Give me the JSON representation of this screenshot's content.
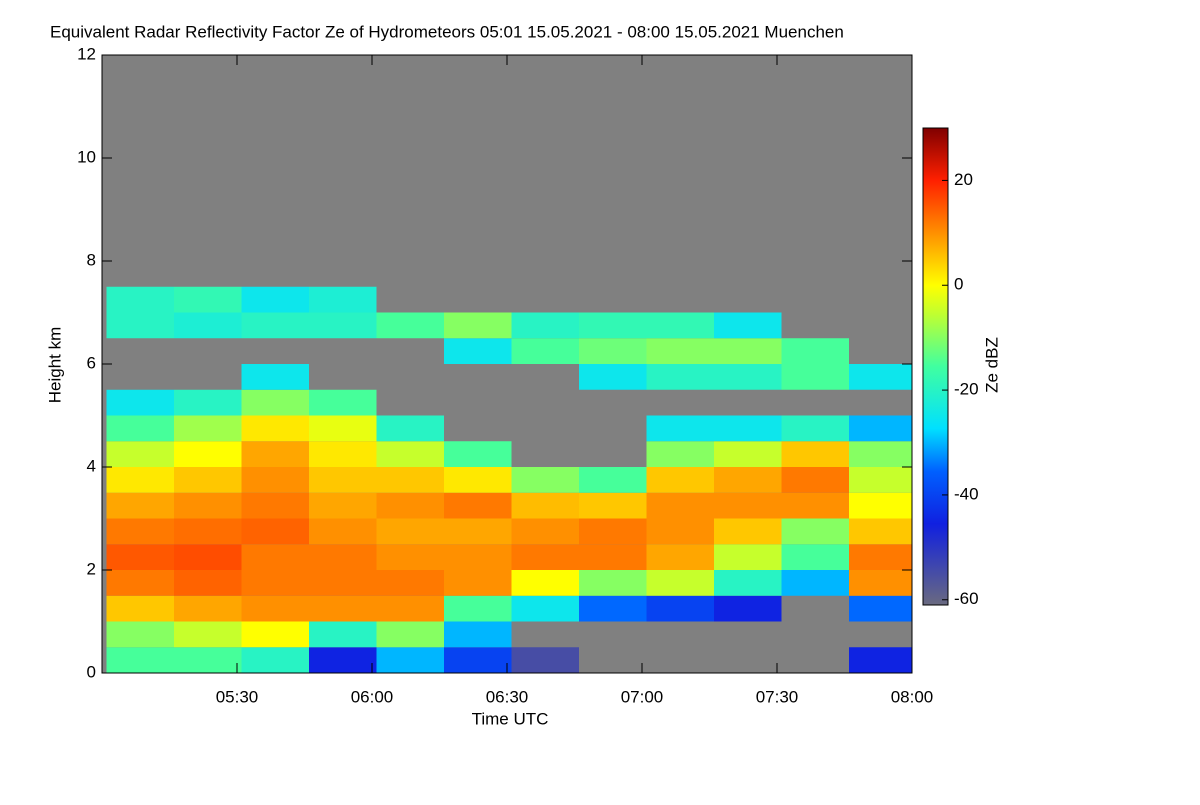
{
  "chart_data": {
    "type": "heatmap",
    "title": "Equivalent Radar Reflectivity Factor Ze of Hydrometeors   05:01 15.05.2021 - 08:00 15.05.2021 Muenchen",
    "x_label": "Time UTC",
    "y_label": "Height km",
    "colorbar_label": "Ze dBZ",
    "colormap": "jet",
    "background": "#808080",
    "x": [
      308.5,
      323.5,
      338.5,
      353.5,
      368.5,
      383.5,
      398.5,
      413.5,
      428.5,
      443.5,
      458.5,
      473.5
    ],
    "y": [
      0.25,
      0.75,
      1.25,
      1.75,
      2.25,
      2.75,
      3.25,
      3.75,
      4.25,
      4.75,
      5.25,
      5.75,
      6.25,
      6.75,
      7.25,
      7.75
    ],
    "z": [
      [
        -15,
        -10,
        5,
        12,
        15,
        12,
        8,
        2,
        -5,
        -15,
        -25,
        null,
        null,
        -20,
        -20,
        null
      ],
      [
        -15,
        -5,
        8,
        14,
        16,
        13,
        10,
        5,
        0,
        -8,
        -20,
        null,
        null,
        -22,
        -18,
        null
      ],
      [
        -20,
        0,
        10,
        12,
        12,
        14,
        12,
        10,
        8,
        2,
        -10,
        -25,
        null,
        -20,
        -25,
        null
      ],
      [
        -45,
        -20,
        10,
        12,
        12,
        10,
        8,
        5,
        2,
        -2,
        -15,
        null,
        null,
        -20,
        -22,
        null
      ],
      [
        -30,
        -10,
        10,
        12,
        10,
        8,
        10,
        5,
        -5,
        -20,
        null,
        null,
        null,
        -15,
        null,
        null
      ],
      [
        -40,
        -30,
        -15,
        10,
        10,
        8,
        12,
        2,
        -15,
        null,
        null,
        null,
        -25,
        -10,
        null,
        null
      ],
      [
        -55,
        null,
        -25,
        0,
        12,
        10,
        6,
        -10,
        null,
        null,
        null,
        null,
        -15,
        -20,
        null,
        null
      ],
      [
        null,
        null,
        -35,
        -10,
        12,
        12,
        5,
        -15,
        null,
        null,
        null,
        -25,
        -12,
        -18,
        null,
        null
      ],
      [
        null,
        null,
        -40,
        -5,
        8,
        10,
        10,
        5,
        -10,
        -25,
        null,
        -20,
        -10,
        -18,
        null,
        null
      ],
      [
        null,
        null,
        -45,
        -20,
        -5,
        5,
        10,
        8,
        -5,
        -25,
        null,
        -20,
        -10,
        -25,
        null,
        null
      ],
      [
        null,
        null,
        null,
        -30,
        -15,
        -10,
        10,
        12,
        5,
        -20,
        null,
        -15,
        -15,
        null,
        null,
        null
      ],
      [
        -45,
        null,
        -35,
        10,
        12,
        5,
        0,
        -5,
        -10,
        -30,
        null,
        -25,
        null,
        null,
        null,
        null
      ]
    ],
    "xlim": [
      300,
      480
    ],
    "xticks": [
      {
        "value": 330,
        "label": "05:30"
      },
      {
        "value": 360,
        "label": "06:00"
      },
      {
        "value": 390,
        "label": "06:30"
      },
      {
        "value": 420,
        "label": "07:00"
      },
      {
        "value": 450,
        "label": "07:30"
      },
      {
        "value": 480,
        "label": "08:00"
      }
    ],
    "ylim": [
      0,
      12
    ],
    "yticks": [
      0,
      2,
      4,
      6,
      8,
      10,
      12
    ],
    "clim": [
      -61,
      30
    ],
    "cticks": [
      -60,
      -40,
      -20,
      0,
      20
    ]
  }
}
